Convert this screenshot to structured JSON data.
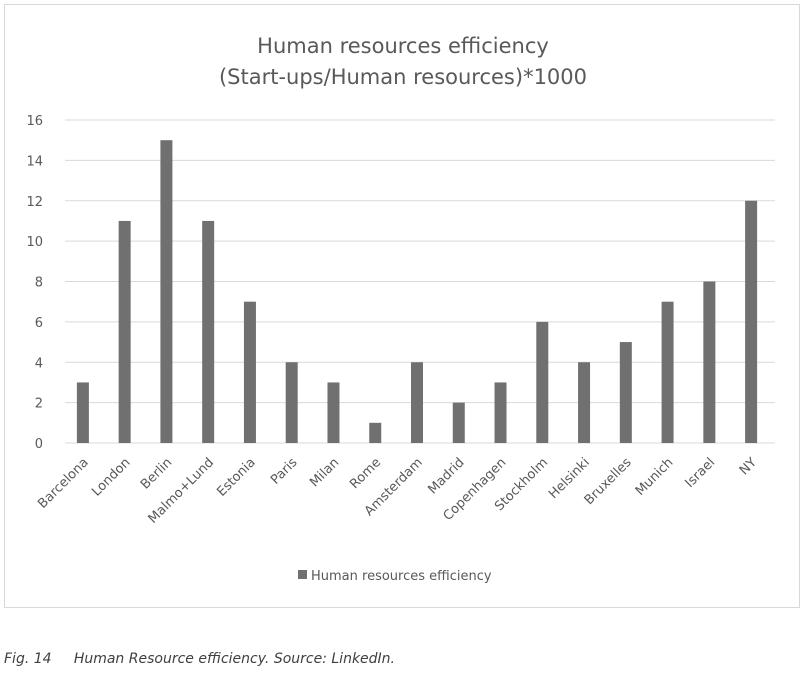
{
  "chart_data": {
    "type": "bar",
    "title": "Human resources efficiency",
    "subtitle": "(Start-ups/Human resources)*1000",
    "categories": [
      "Barcelona",
      "London",
      "Berlin",
      "Malmo+Lund",
      "Estonia",
      "Paris",
      "Milan",
      "Rome",
      "Amsterdam",
      "Madrid",
      "Copenhagen",
      "Stockholm",
      "Helsinki",
      "Bruxelles",
      "Munich",
      "Israel",
      "NY"
    ],
    "series": [
      {
        "name": "Human resources efficiency",
        "values": [
          3,
          11,
          15,
          11,
          7,
          4,
          3,
          1,
          4,
          2,
          3,
          6,
          4,
          5,
          7,
          8,
          12
        ]
      }
    ],
    "ylim": [
      0,
      16
    ],
    "yticks": [
      0,
      2,
      4,
      6,
      8,
      10,
      12,
      14,
      16
    ],
    "grid": true,
    "legend_position": "bottom",
    "bar_color": "#707070",
    "grid_color": "#d9d9d9"
  },
  "caption": {
    "fig": "Fig. 14",
    "text": "Human Resource efficiency. Source: LinkedIn."
  }
}
